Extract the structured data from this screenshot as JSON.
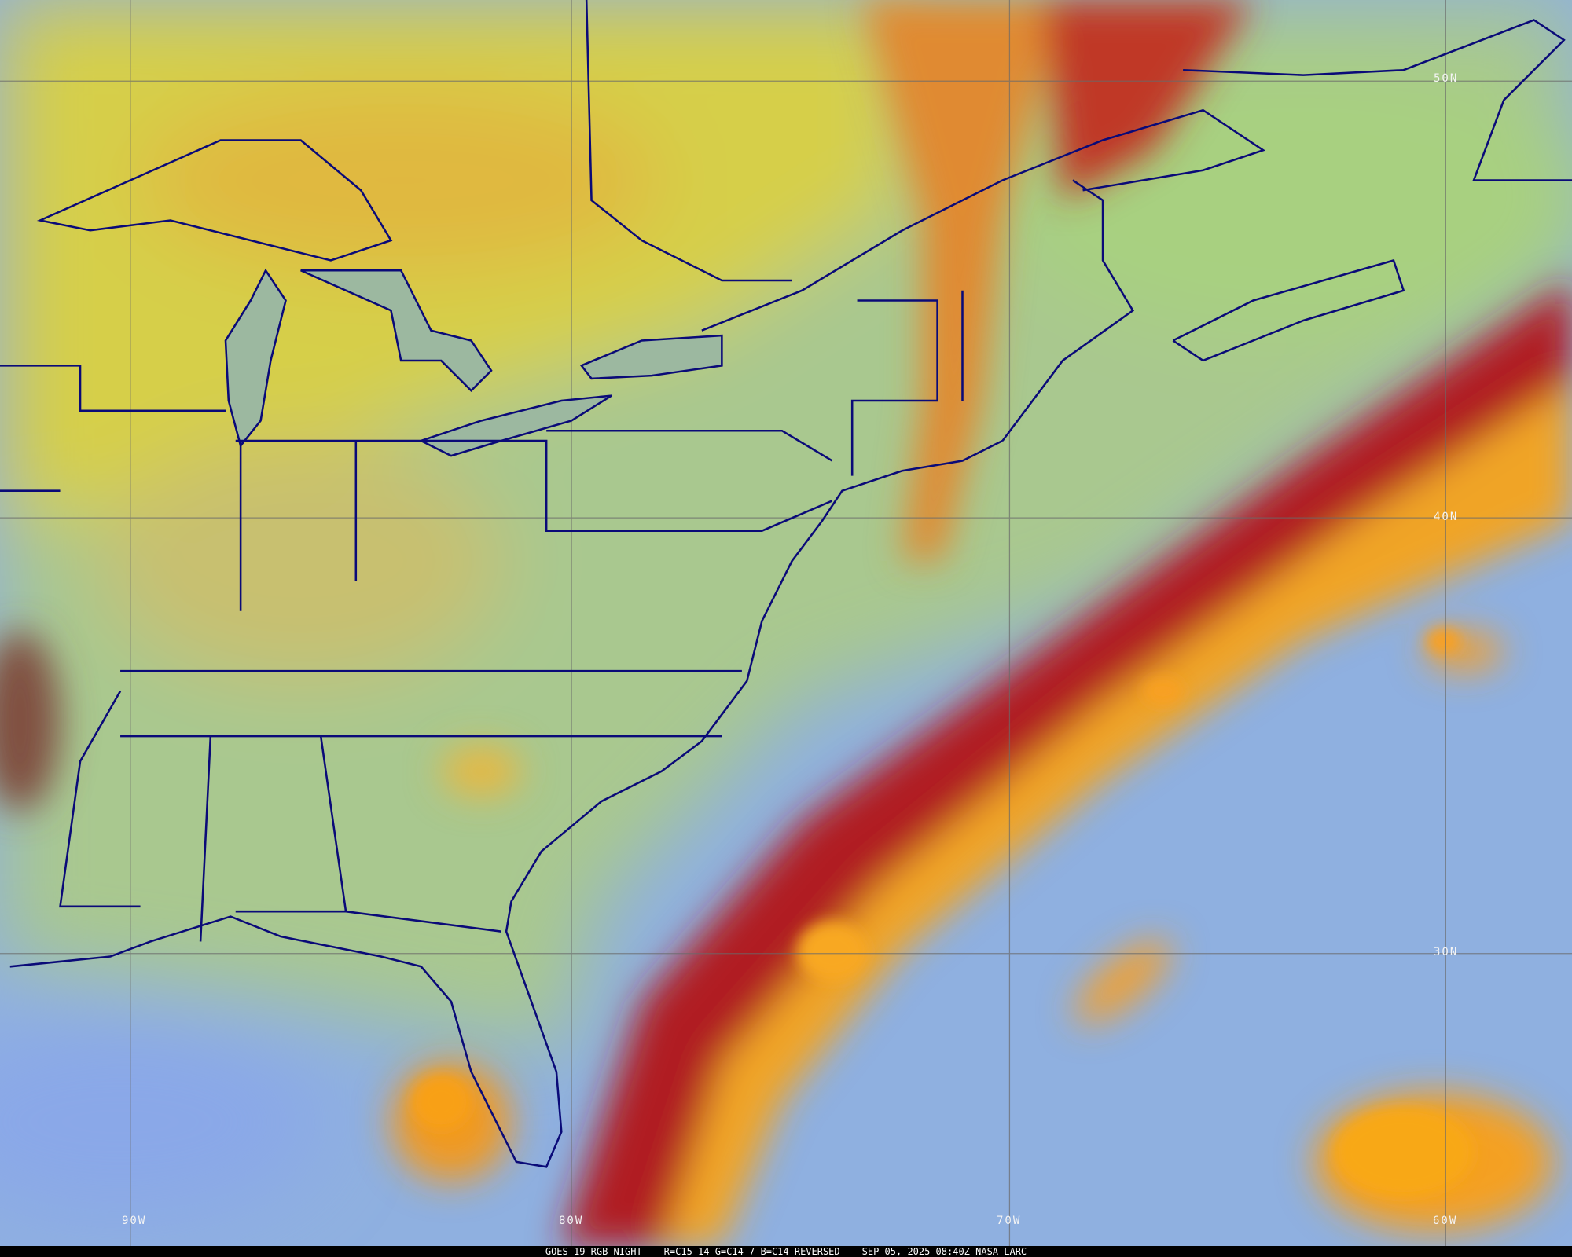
{
  "caption": {
    "satellite": "GOES-19 RGB-NIGHT",
    "channels": "R=C15-14 G=C14-7 B=C14-REVERSED",
    "datetime": "SEP 05, 2025 08:40Z NASA LARC"
  },
  "grid_labels": {
    "lat": [
      "50N",
      "40N",
      "30N"
    ],
    "lon": [
      "90W",
      "80W",
      "70W",
      "60W"
    ]
  },
  "colors": {
    "border": "#0a0a78",
    "grid": "#6a6a6a",
    "ocean": "#7fa0e0",
    "land": "#a8c890",
    "high_cloud_yellow": "#d8d040",
    "cloud_orange": "#f0a020",
    "cloud_red": "#b01818"
  }
}
